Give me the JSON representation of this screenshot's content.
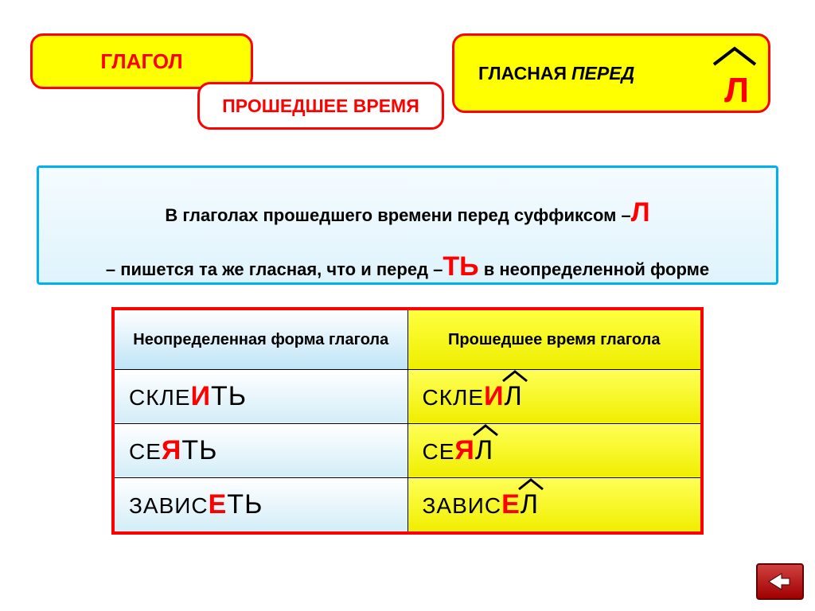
{
  "colors": {
    "accent_red": "#ff0000",
    "yellow": "#ffff00",
    "blue_border": "#00b0f0",
    "blue_grad_top": "#ffffff",
    "blue_grad_bot": "#bfe4f7",
    "yellow_grad_top": "#ffff40",
    "yellow_grad_bot": "#eeee00"
  },
  "header": {
    "verb_label": "ГЛАГОЛ",
    "tense_label": "ПРОШЕДШЕЕ ВРЕМЯ",
    "vowel_label_bold": "ГЛАСНАЯ",
    "vowel_label_italic": "ПЕРЕД",
    "suffix_letter": "Л"
  },
  "rule": {
    "line1_a": "В глаголах прошедшего  времени  перед суффиксом –",
    "line1_suffix": "Л",
    "line2_a": "– пишется та же гласная, что и  перед –",
    "line2_suffix": "ТЬ",
    "line2_b": " в неопределенной форме"
  },
  "table": {
    "header_left": "Неопределенная форма глагола",
    "header_right": "Прошедшее время глагола",
    "rows": [
      {
        "inf_base": "СКЛЕ",
        "inf_vowel": "И",
        "inf_end": "ТЬ",
        "past_base": "СКЛЕ",
        "past_vowel": "И",
        "past_end": "Л"
      },
      {
        "inf_base": "СЕ",
        "inf_vowel": "Я",
        "inf_end": "ТЬ",
        "past_base": "СЕ",
        "past_vowel": "Я",
        "past_end": "Л"
      },
      {
        "inf_base": "ЗАВИС",
        "inf_vowel": "Е",
        "inf_end": "ТЬ",
        "past_base": "ЗАВИС",
        "past_vowel": "Е",
        "past_end": "Л"
      }
    ]
  },
  "nav": {
    "return_tooltip": "return"
  }
}
